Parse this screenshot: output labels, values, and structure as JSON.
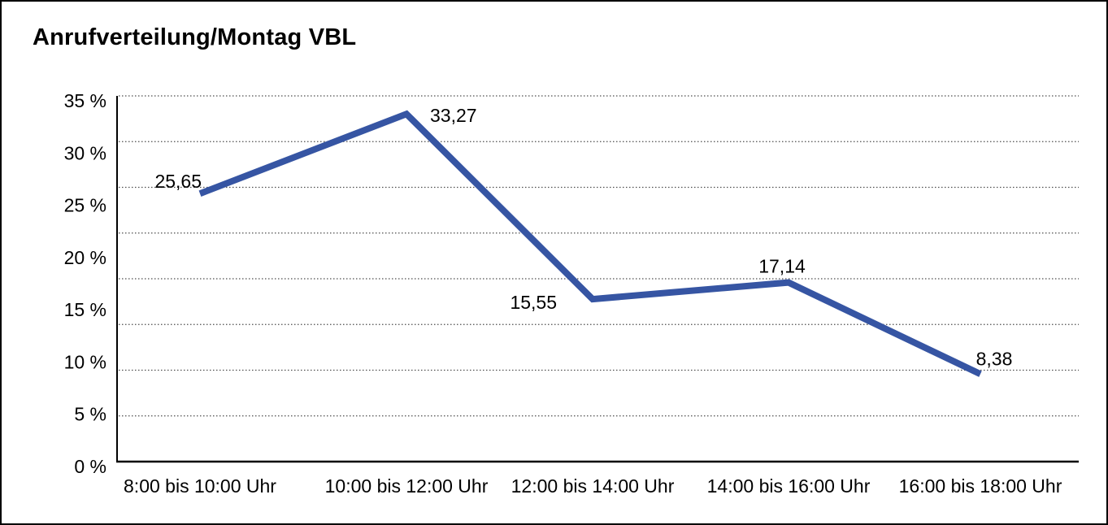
{
  "window": {
    "background": "#ffffff",
    "border_color": "#000000"
  },
  "chart_data": {
    "type": "line",
    "title": "Anrufverteilung/Montag VBL",
    "categories": [
      "8:00 bis 10:00 Uhr",
      "10:00 bis 12:00 Uhr",
      "12:00 bis 14:00 Uhr",
      "14:00 bis 16:00 Uhr",
      "16:00 bis 18:00 Uhr"
    ],
    "values": [
      25.65,
      33.27,
      15.55,
      17.14,
      8.38
    ],
    "point_labels": [
      "25,65",
      "33,27",
      "15,55",
      "17,14",
      "8,38"
    ],
    "y_ticks": [
      {
        "value": 35,
        "label": "35 %"
      },
      {
        "value": 30,
        "label": "30 %"
      },
      {
        "value": 25,
        "label": "25 %"
      },
      {
        "value": 20,
        "label": "20 %"
      },
      {
        "value": 15,
        "label": "15 %"
      },
      {
        "value": 10,
        "label": "10 %"
      },
      {
        "value": 5,
        "label": "5 %"
      },
      {
        "value": 0,
        "label": "0 %"
      }
    ],
    "ylim": [
      0,
      35
    ],
    "xlabel": "",
    "ylabel": "",
    "unit": "%",
    "legend_position": "none",
    "grid": "horizontal-dotted",
    "grid_divisions": 8,
    "line_color": "#3655A3",
    "axis_color": "#000000",
    "grid_color": "#4d4d4d",
    "text_color": "#000000"
  }
}
